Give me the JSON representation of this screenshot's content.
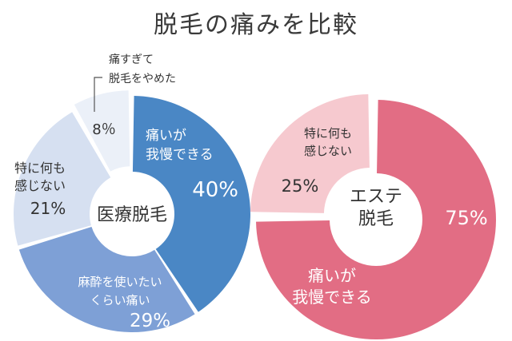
{
  "title": "脱毛の痛みを比較",
  "chart_data": [
    {
      "type": "pie",
      "center_label": "医療脱毛",
      "slices": [
        {
          "label": "痛いが\n我慢できる",
          "value": 40,
          "value_label": "40%",
          "color": "#4a87c5"
        },
        {
          "label": "麻酔を使いたい\nくらい痛い",
          "value": 29,
          "value_label": "29%",
          "color": "#7ea0d6"
        },
        {
          "label": "特に何も\n感じない",
          "value": 21,
          "value_label": "21%",
          "color": "#d6e0f1"
        },
        {
          "label": "痛すぎて\n脱毛をやめた",
          "value": 8,
          "value_label": "8％",
          "color": "#ebf0f8"
        }
      ]
    },
    {
      "type": "pie",
      "center_label": "エステ\n脱毛",
      "slices": [
        {
          "label": "痛いが\n我慢できる",
          "value": 75,
          "value_label": "75%",
          "color": "#e26d84"
        },
        {
          "label": "特に何も\n感じない",
          "value": 25,
          "value_label": "25%",
          "color": "#f6c9cf"
        }
      ]
    }
  ]
}
